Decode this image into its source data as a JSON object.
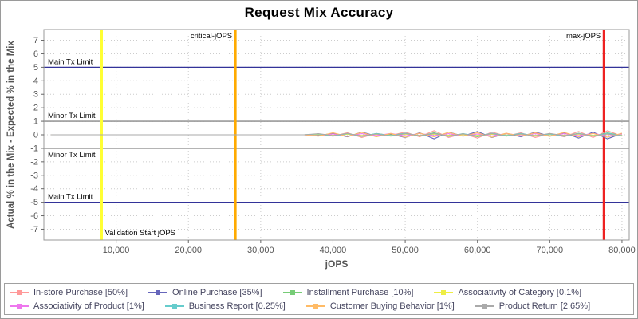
{
  "chart_data": {
    "type": "line",
    "title": "Request Mix Accuracy",
    "xlabel": "jOPS",
    "ylabel": "Actual % in the Mix - Expected % in the Mix",
    "xlim": [
      0,
      81000
    ],
    "ylim": [
      -7.8,
      7.8
    ],
    "grid": true,
    "legend_position": "bottom",
    "x_tick_values": [
      10000,
      20000,
      30000,
      40000,
      50000,
      60000,
      70000,
      80000
    ],
    "x_tick_labels": [
      "10,000",
      "20,000",
      "30,000",
      "40,000",
      "50,000",
      "60,000",
      "70,000",
      "80,000"
    ],
    "y_tick_values": [
      -7,
      -6,
      -5,
      -4,
      -3,
      -2,
      -1,
      0,
      1,
      2,
      3,
      4,
      5,
      6,
      7
    ],
    "reference_lines_h": [
      {
        "y": 5,
        "label": "Main Tx Limit",
        "color": "#333399",
        "label_side": "above"
      },
      {
        "y": 1,
        "label": "Minor Tx Limit",
        "color": "#888888",
        "label_side": "above"
      },
      {
        "y": -1,
        "label": "Minor Tx Limit",
        "color": "#888888",
        "label_side": "below"
      },
      {
        "y": -5,
        "label": "Main Tx Limit",
        "color": "#333399",
        "label_side": "above"
      }
    ],
    "reference_lines_v": [
      {
        "x": 8000,
        "label": "Validation Start jOPS",
        "color": "#ffff33",
        "label_pos": "bottom-right"
      },
      {
        "x": 26500,
        "label": "critical-jOPS",
        "color": "#ffaa00",
        "label_pos": "top-left"
      },
      {
        "x": 77500,
        "label": "max-jOPS",
        "color": "#ee2222",
        "label_pos": "top-left"
      }
    ],
    "x": [
      1000,
      4000,
      8000,
      12000,
      16000,
      20000,
      24000,
      28000,
      32000,
      36000,
      38000,
      40000,
      42000,
      44000,
      46000,
      48000,
      50000,
      52000,
      54000,
      56000,
      58000,
      60000,
      62000,
      64000,
      66000,
      68000,
      70000,
      72000,
      74000,
      76000,
      78000,
      80000
    ],
    "series": [
      {
        "name": "In-store Purchase [50%]",
        "color": "#ff9999",
        "values": [
          0,
          0,
          0,
          0,
          0,
          0,
          0,
          0,
          0,
          0,
          0.05,
          -0.1,
          0.15,
          -0.2,
          0.1,
          -0.05,
          0.2,
          -0.15,
          0.3,
          -0.2,
          0.1,
          -0.25,
          0.2,
          -0.1,
          0.15,
          -0.2,
          0.1,
          -0.15,
          0.25,
          -0.2,
          0.3,
          -0.1
        ]
      },
      {
        "name": "Online Purchase [35%]",
        "color": "#6666bb",
        "values": [
          0,
          0,
          0,
          0,
          0,
          0,
          0,
          0,
          0,
          0,
          -0.05,
          0.1,
          -0.15,
          0.2,
          -0.1,
          0.05,
          -0.2,
          0.15,
          -0.3,
          0.2,
          -0.1,
          0.25,
          -0.2,
          0.1,
          -0.15,
          0.2,
          -0.1,
          0.15,
          -0.25,
          0.2,
          -0.3,
          0.1
        ]
      },
      {
        "name": "Installment Purchase [10%]",
        "color": "#77cc77",
        "values": [
          0,
          0,
          0,
          0,
          0,
          0,
          0,
          0,
          0,
          0,
          0.05,
          -0.08,
          0.1,
          -0.12,
          0.08,
          -0.05,
          0.12,
          -0.1,
          0.15,
          -0.12,
          0.06,
          -0.15,
          0.1,
          -0.06,
          0.08,
          -0.1,
          0.05,
          -0.08,
          0.12,
          -0.1,
          0.15,
          -0.05
        ]
      },
      {
        "name": "Associativity of Category [0.1%]",
        "color": "#eeee44",
        "values": [
          0,
          0,
          0,
          0,
          0,
          0,
          0,
          0,
          0,
          0,
          0.02,
          -0.03,
          0.04,
          -0.05,
          0.03,
          -0.02,
          0.05,
          -0.04,
          0.05,
          -0.03,
          0.02,
          -0.05,
          0.04,
          -0.02,
          0.03,
          -0.04,
          0.02,
          -0.03,
          0.05,
          -0.04,
          0.05,
          -0.02
        ]
      },
      {
        "name": "Associativity of Product [1%]",
        "color": "#ee77ee",
        "values": [
          0,
          0,
          0,
          0,
          0,
          0,
          0,
          0,
          0,
          0,
          -0.08,
          0.06,
          -0.1,
          0.08,
          -0.06,
          0.1,
          -0.08,
          0.1,
          -0.06,
          0.08,
          -0.1,
          0.06,
          -0.08,
          0.1,
          -0.06,
          0.08,
          -0.1,
          0.08,
          -0.06,
          0.1,
          -0.08,
          0.06
        ]
      },
      {
        "name": "Business Report [0.25%]",
        "color": "#66cccc",
        "values": [
          0,
          0,
          0,
          0,
          0,
          0,
          0,
          0,
          0,
          0,
          0.06,
          -0.1,
          0.08,
          -0.12,
          0.1,
          -0.06,
          0.12,
          -0.08,
          0.1,
          -0.12,
          0.08,
          -0.1,
          0.12,
          -0.06,
          0.1,
          -0.08,
          0.06,
          -0.12,
          0.1,
          -0.08,
          0.12,
          -0.06
        ]
      },
      {
        "name": "Customer Buying Behavior [1%]",
        "color": "#ffbb66",
        "values": [
          0,
          0,
          0,
          0,
          0,
          0,
          0,
          0,
          0,
          0,
          -0.1,
          0.15,
          -0.12,
          0.18,
          -0.15,
          0.1,
          -0.18,
          0.12,
          -0.15,
          0.18,
          -0.1,
          0.15,
          -0.18,
          0.12,
          -0.1,
          0.15,
          -0.12,
          0.18,
          -0.15,
          0.1,
          -0.18,
          0.12
        ]
      },
      {
        "name": "Product Return [2.65%]",
        "color": "#aaaaaa",
        "values": [
          0,
          0,
          0,
          0,
          0,
          0,
          0,
          0,
          0,
          0,
          0.08,
          -0.06,
          0.1,
          -0.08,
          0.06,
          -0.1,
          0.08,
          -0.06,
          0.1,
          -0.08,
          0.06,
          -0.1,
          0.08,
          -0.1,
          0.06,
          -0.08,
          0.1,
          -0.06,
          0.08,
          -0.1,
          0.06,
          -0.08
        ]
      }
    ]
  }
}
